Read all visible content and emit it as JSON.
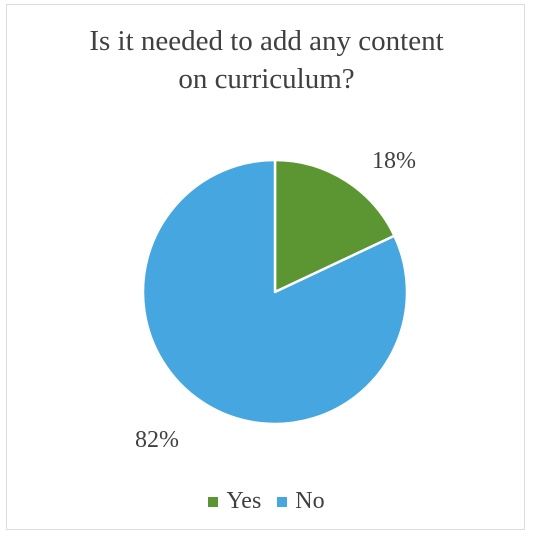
{
  "chart_data": {
    "type": "pie",
    "title_lines": [
      "Is it needed to add any content",
      "on curriculum?"
    ],
    "categories": [
      "Yes",
      "No"
    ],
    "values": [
      18,
      82
    ],
    "data_labels": [
      "18%",
      "82%"
    ],
    "colors": [
      "#5b9632",
      "#45a6e0"
    ],
    "start_angle_deg": 0,
    "direction": "clockwise",
    "legend_position": "bottom"
  }
}
